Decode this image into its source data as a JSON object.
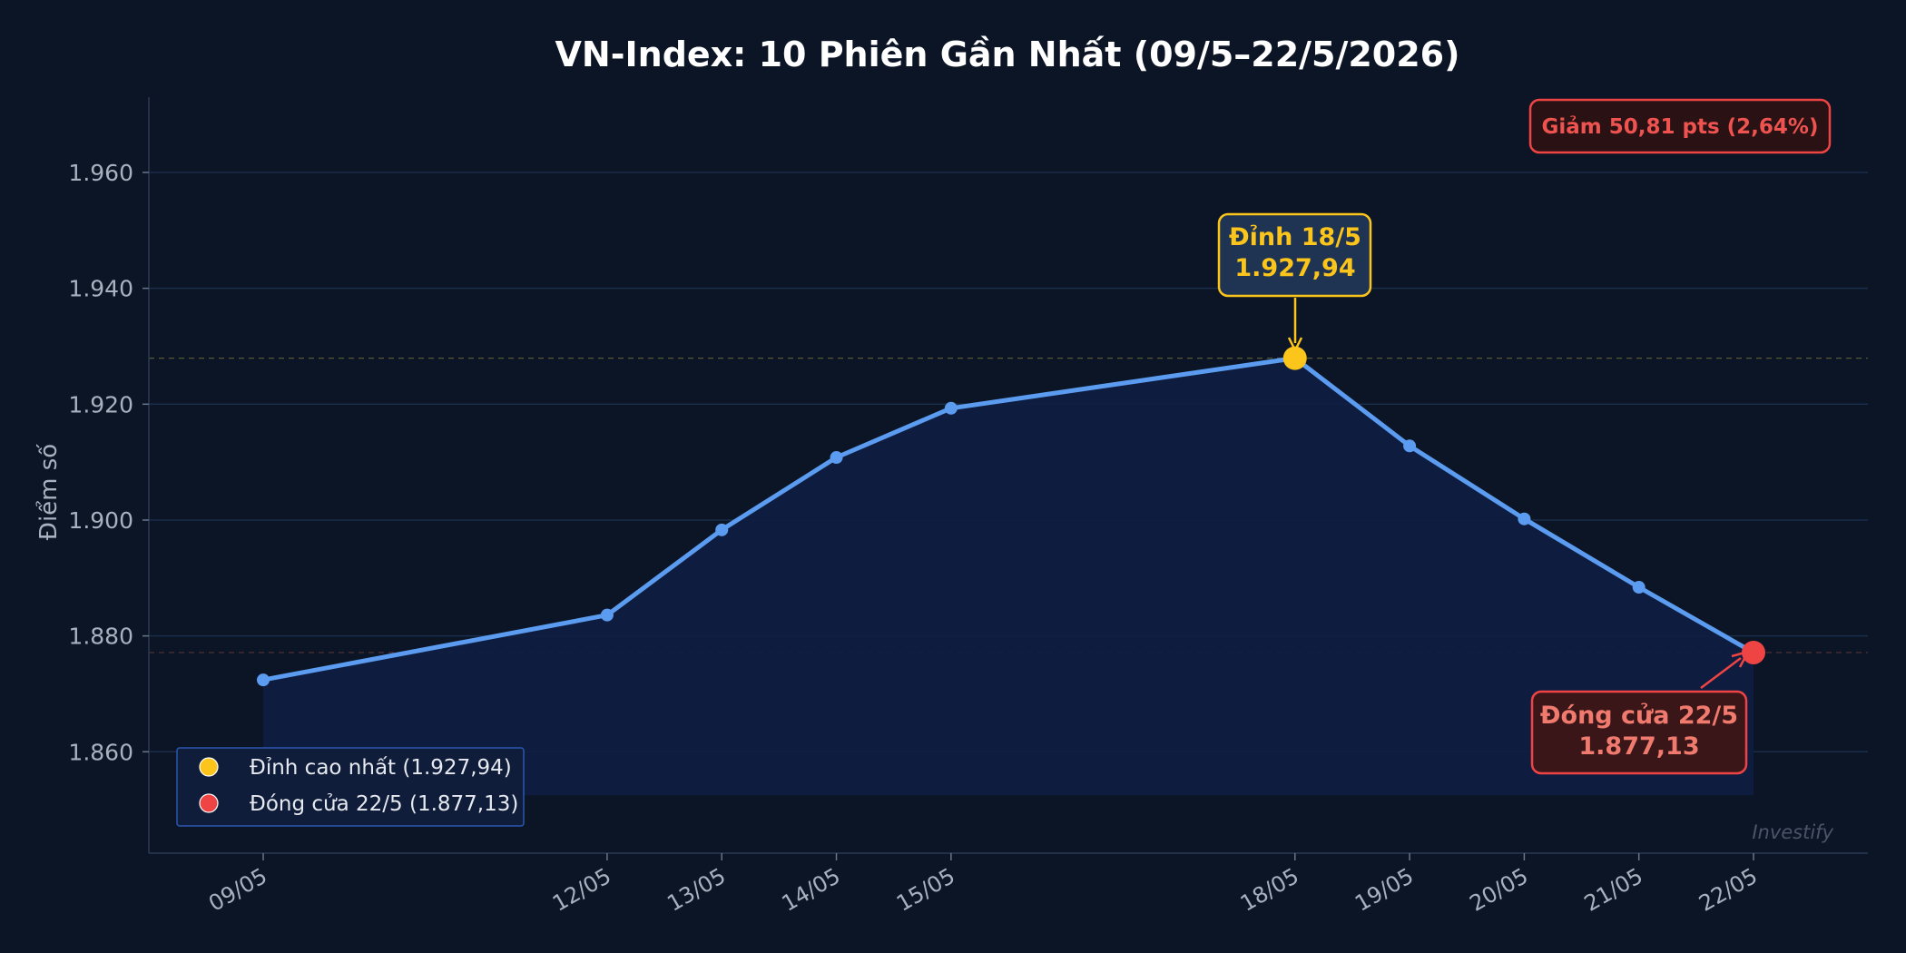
{
  "chart_data": {
    "type": "line",
    "title": "VN-Index: 10 Phiên Gần Nhất (09/5–22/5/2026)",
    "xlabel": "",
    "ylabel": "Điểm số",
    "x": [
      "2026-05-09",
      "2026-05-12",
      "2026-05-13",
      "2026-05-14",
      "2026-05-15",
      "2026-05-18",
      "2026-05-19",
      "2026-05-20",
      "2026-05-21",
      "2026-05-22"
    ],
    "x_tick_labels": [
      "09/05",
      "12/05",
      "13/05",
      "14/05",
      "15/05",
      "18/05",
      "19/05",
      "20/05",
      "21/05",
      "22/05"
    ],
    "values": [
      1872.4,
      1883.6,
      1898.3,
      1910.8,
      1919.3,
      1927.94,
      1912.8,
      1900.2,
      1888.4,
      1877.13
    ],
    "ylim": [
      1842.5,
      1973
    ],
    "y_ticks": [
      1860,
      1880,
      1900,
      1920,
      1940,
      1960
    ],
    "y_tick_labels": [
      "1.860",
      "1.880",
      "1.900",
      "1.920",
      "1.940",
      "1.960"
    ],
    "fill_floor": 1852.5,
    "grid": true,
    "legend_position": "bottom-left",
    "legend": [
      {
        "label": "Đỉnh cao nhất (1.927,94)",
        "color": "#fbc51b"
      },
      {
        "label": "Đóng cửa 22/5 (1.877,13)",
        "color": "#ef4444"
      }
    ],
    "annotations": {
      "peak": {
        "line1": "Đỉnh 18/5",
        "line2": "1.927,94",
        "x": "2026-05-18",
        "y": 1927.94
      },
      "close": {
        "line1": "Đóng cửa 22/5",
        "line2": "1.877,13",
        "x": "2026-05-22",
        "y": 1877.13
      }
    },
    "badge": "Giảm 50,81 pts (2,64%)",
    "watermark": "Investify"
  },
  "colors": {
    "background": "#0b1525",
    "line": "#5b9cf0",
    "fill": "#0f1d40",
    "grid": "#1a2d4a",
    "peak": "#fbc51b",
    "close": "#ef4444",
    "peak_box_fill": "#1f3352",
    "close_box_fill": "#3a1618"
  }
}
